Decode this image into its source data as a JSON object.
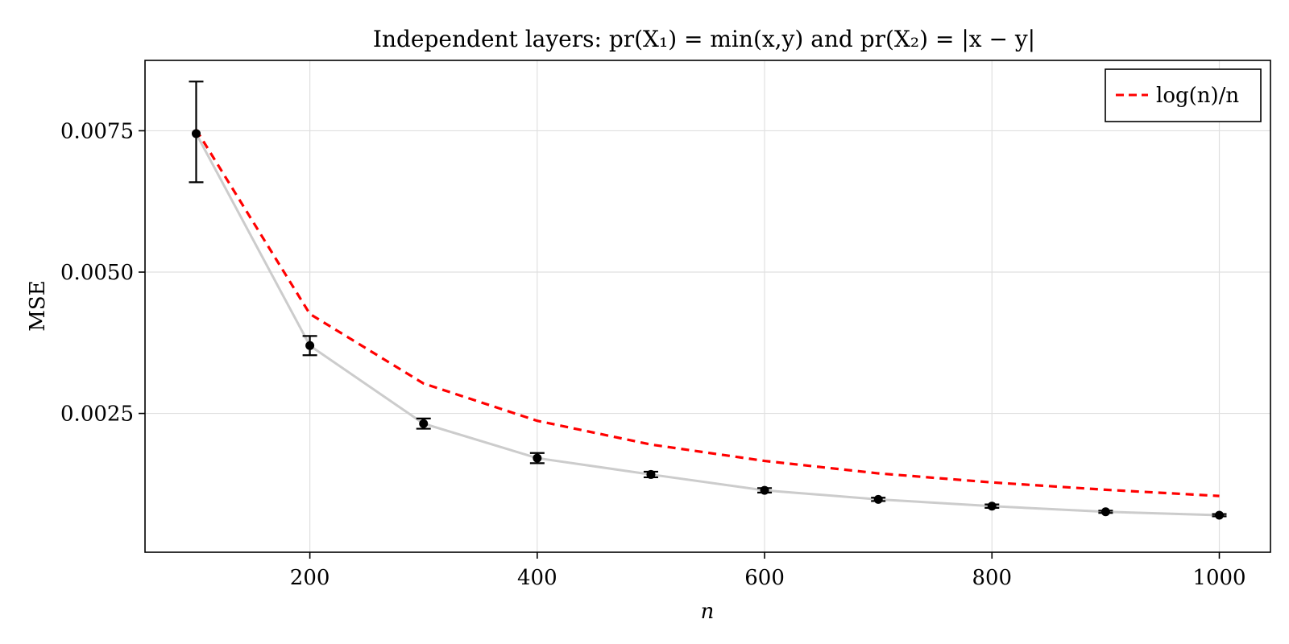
{
  "chart_data": {
    "type": "line",
    "title": "Independent layers: pr(X₁) = min(x,y) and pr(X₂) = |x − y|",
    "xlabel": "n",
    "ylabel": "MSE",
    "xlim": [
      55,
      1045
    ],
    "ylim": [
      4.5e-05,
      0.008745
    ],
    "x_ticks": [
      200,
      400,
      600,
      800,
      1000
    ],
    "x_tick_labels": [
      "200",
      "400",
      "600",
      "800",
      "1000"
    ],
    "y_ticks": [
      0.0025,
      0.005,
      0.0075
    ],
    "y_tick_labels": [
      "0.0025",
      "0.0050",
      "0.0075"
    ],
    "grid": true,
    "legend_position": "top-right",
    "colors": {
      "mse_line": "#cccccc",
      "mse_points": "#000000",
      "reference": "#ff0000",
      "grid": "#e0e0e0"
    },
    "series": [
      {
        "kind": "line-with-errorbars",
        "x": [
          100,
          200,
          300,
          400,
          500,
          600,
          700,
          800,
          900,
          1000
        ],
        "values": [
          0.00745,
          0.0037,
          0.00232,
          0.00171,
          0.00142,
          0.00114,
          0.00098,
          0.00086,
          0.00076,
          0.0007
        ],
        "err_low": [
          0.00659,
          0.00353,
          0.00223,
          0.00162,
          0.00137,
          0.0011,
          0.00095,
          0.00083,
          0.00074,
          0.00068
        ],
        "err_high": [
          0.00837,
          0.00387,
          0.00241,
          0.0018,
          0.00147,
          0.00118,
          0.00101,
          0.00089,
          0.00078,
          0.00072
        ]
      },
      {
        "name": "log(n)/n",
        "kind": "dashed-line",
        "x": [
          100,
          200,
          300,
          400,
          500,
          600,
          700,
          800,
          900,
          1000
        ],
        "values": [
          0.00752,
          0.00426,
          0.00303,
          0.00237,
          0.00195,
          0.00166,
          0.00144,
          0.00128,
          0.00115,
          0.00104
        ]
      }
    ]
  }
}
